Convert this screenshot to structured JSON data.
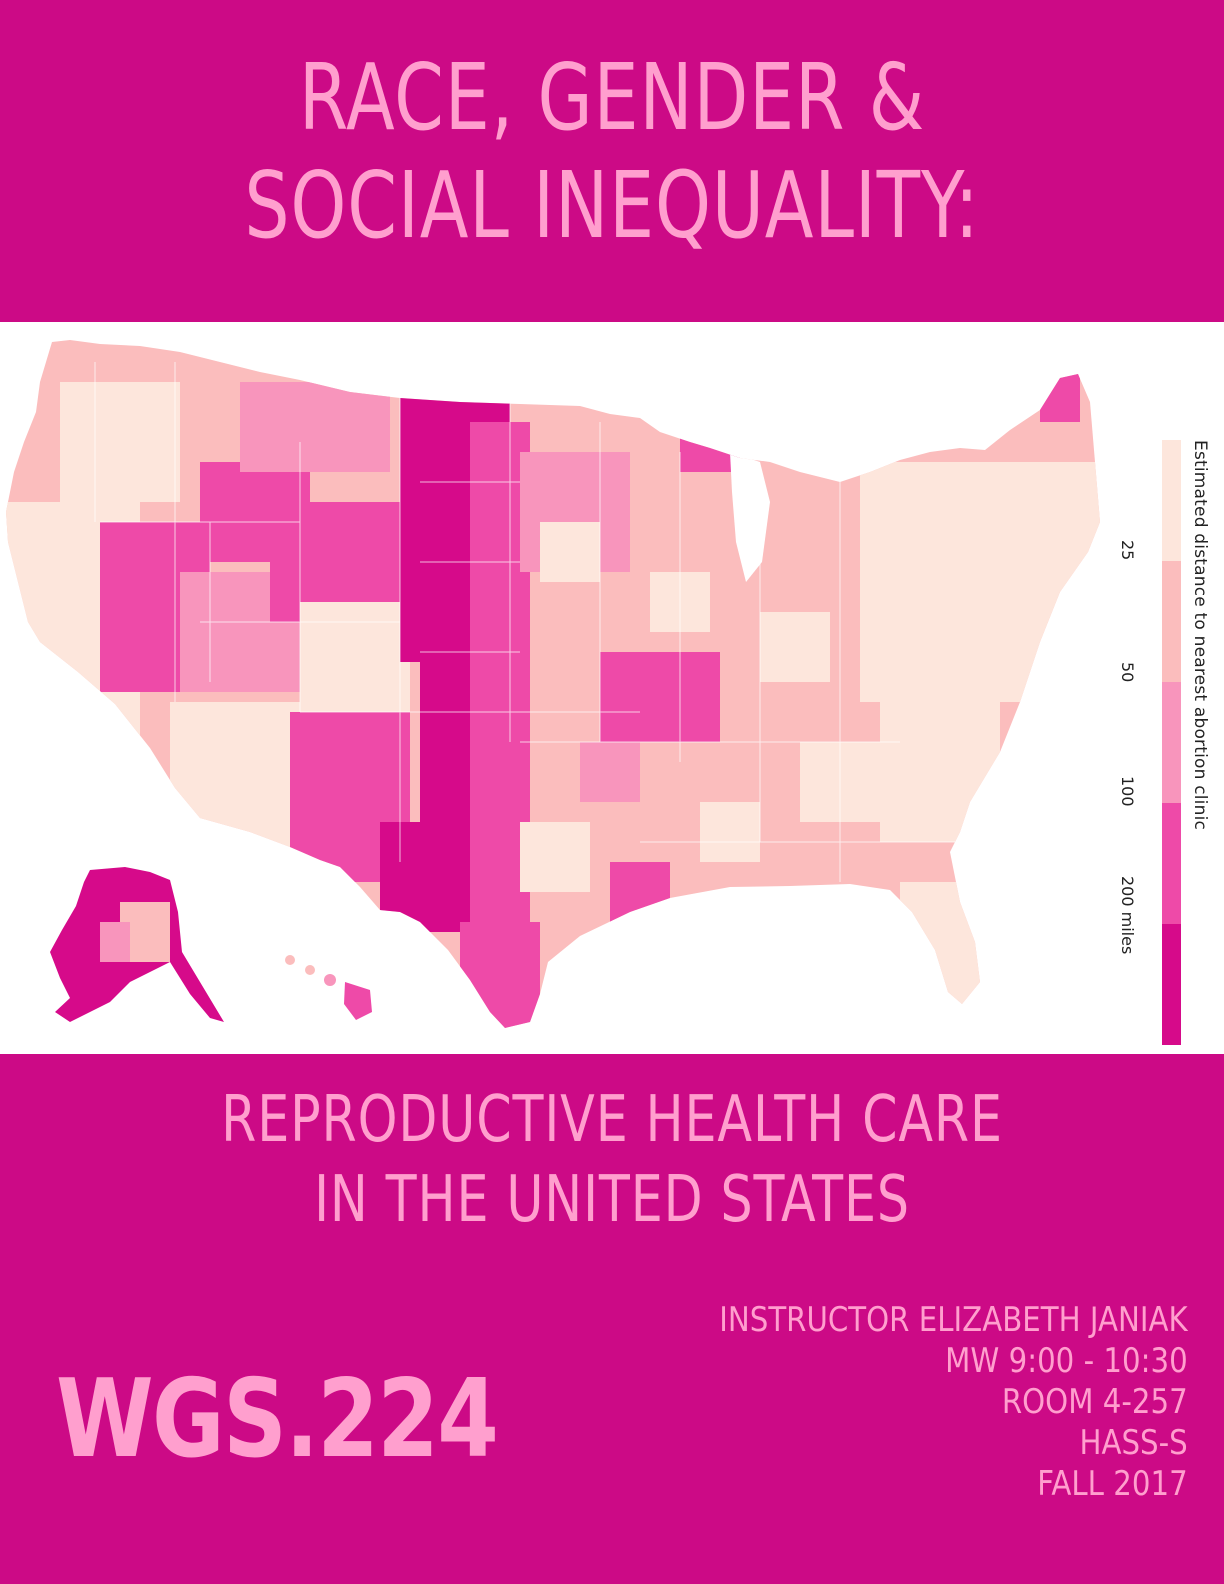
{
  "header": {
    "line1": "RACE, GENDER &",
    "line2": "SOCIAL INEQUALITY:"
  },
  "subtitle": {
    "line1": "REPRODUCTIVE HEALTH CARE",
    "line2": "IN THE UNITED STATES"
  },
  "course": {
    "code": "WGS.224",
    "instructor": "INSTRUCTOR ELIZABETH JANIAK",
    "schedule": "MW 9:00 - 10:30",
    "room": "ROOM 4-257",
    "designation": "HASS-S",
    "term": "FALL 2017"
  },
  "map": {
    "legend_title": "Estimated distance to nearest abortion clinic",
    "ticks": [
      "25",
      "50",
      "100",
      "200 miles"
    ],
    "colors": [
      "#fde6dc",
      "#fbbdbd",
      "#f895bc",
      "#ee4aa8",
      "#d60a8a"
    ]
  }
}
